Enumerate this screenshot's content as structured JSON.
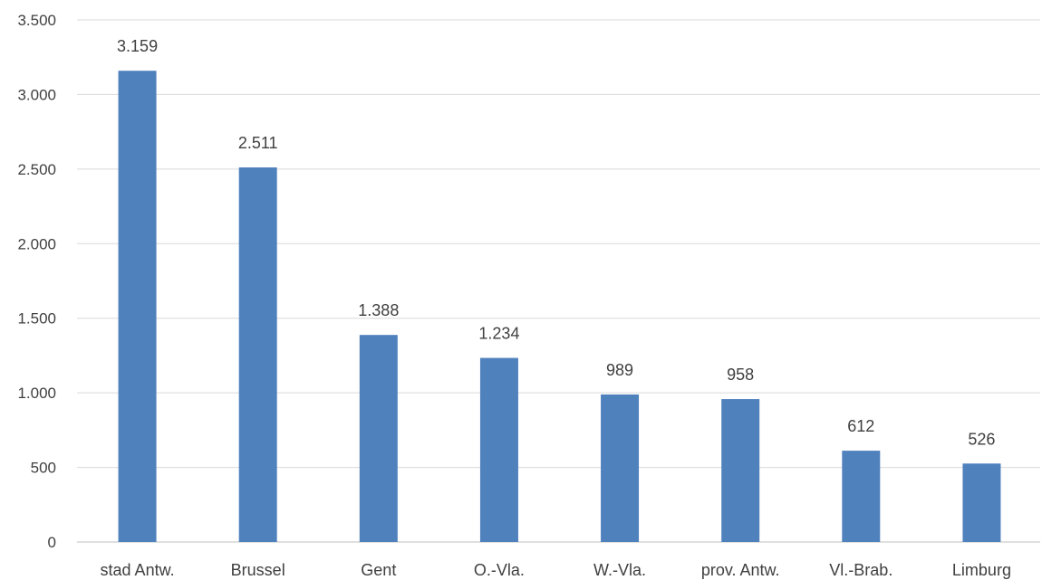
{
  "chart_data": {
    "type": "bar",
    "categories": [
      "stad Antw.",
      "Brussel",
      "Gent",
      "O.-Vla.",
      "W.-Vla.",
      "prov. Antw.",
      "Vl.-Brab.",
      "Limburg"
    ],
    "values": [
      3159,
      2511,
      1388,
      1234,
      989,
      958,
      612,
      526
    ],
    "value_labels": [
      "3.159",
      "2.511",
      "1.388",
      "1.234",
      "989",
      "958",
      "612",
      "526"
    ],
    "y_ticks": [
      0,
      500,
      1000,
      1500,
      2000,
      2500,
      3000,
      3500
    ],
    "y_tick_labels": [
      "0",
      "500",
      "1.000",
      "1.500",
      "2.000",
      "2.500",
      "3.000",
      "3.500"
    ],
    "ylim": [
      0,
      3500
    ],
    "grid": true,
    "legend": "none",
    "title": "",
    "xlabel": "",
    "ylabel": "",
    "colors": {
      "bar": "#4f81bd",
      "grid": "#d9d9d9",
      "text": "#404040"
    }
  }
}
